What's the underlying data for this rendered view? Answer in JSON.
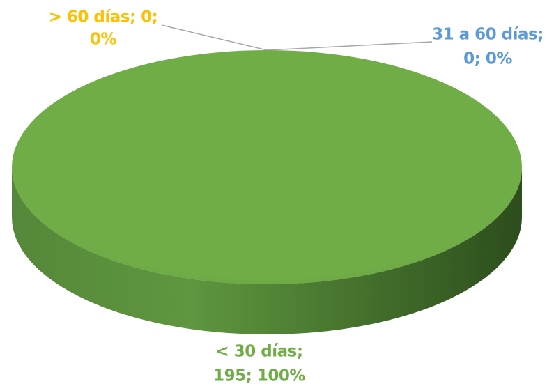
{
  "chart_data": {
    "type": "pie3d",
    "categories": [
      "< 30 días",
      "31 a 60 días",
      "> 60 días"
    ],
    "values": [
      195,
      0,
      0
    ],
    "value_labels": [
      [
        "< 30 días;",
        "195; 100%"
      ],
      [
        "31 a 60 días;",
        "0; 0%"
      ],
      [
        "> 60 días; 0;",
        "0%"
      ]
    ],
    "colors": [
      "#70ad47",
      "#5b9bd5",
      "#ffc000"
    ]
  }
}
